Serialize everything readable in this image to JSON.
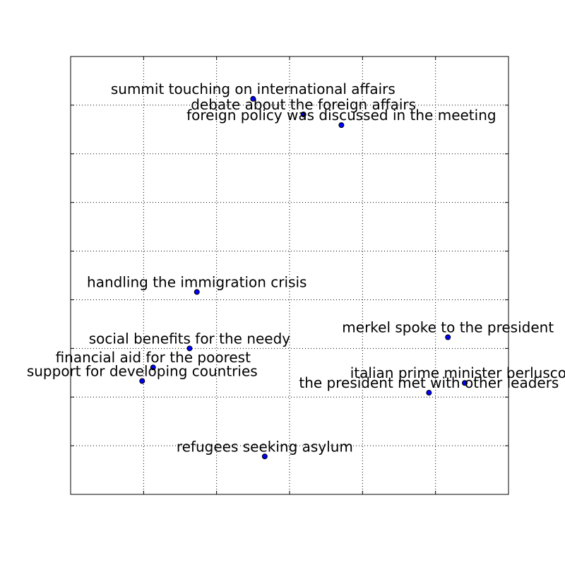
{
  "chart_data": {
    "type": "scatter",
    "title": "",
    "xlabel": "",
    "ylabel": "",
    "xlim": [
      0,
      6
    ],
    "ylim": [
      0,
      9
    ],
    "grid": true,
    "tick_labels_shown": false,
    "marker_color": "#0000ff",
    "marker_edge_color": "#000000",
    "points": [
      {
        "x": 2.5,
        "y": 8.13,
        "label": "summit touching on international affairs"
      },
      {
        "x": 3.19,
        "y": 7.81,
        "label": "debate about the foreign affairs"
      },
      {
        "x": 3.71,
        "y": 7.59,
        "label": "foreign policy was discussed in the meeting"
      },
      {
        "x": 1.73,
        "y": 4.16,
        "label": "handling the immigration crisis"
      },
      {
        "x": 1.63,
        "y": 3.0,
        "label": "social benefits for the needy"
      },
      {
        "x": 5.17,
        "y": 3.23,
        "label": "merkel spoke to the president"
      },
      {
        "x": 1.13,
        "y": 2.61,
        "label": "financial aid for the poorest"
      },
      {
        "x": 0.98,
        "y": 2.33,
        "label": "support for developing countries"
      },
      {
        "x": 5.4,
        "y": 2.29,
        "label": "italian prime minister berlusconi"
      },
      {
        "x": 4.91,
        "y": 2.09,
        "label": "the president met with other leaders"
      },
      {
        "x": 2.66,
        "y": 0.78,
        "label": "refugees seeking asylum"
      }
    ]
  }
}
